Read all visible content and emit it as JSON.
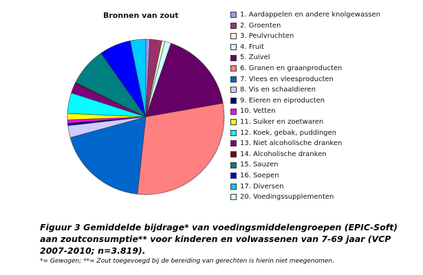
{
  "chart_data": {
    "type": "pie",
    "title": "Bronnen van zout",
    "legend_position": "right",
    "slices": [
      {
        "label": "1. Aardappelen en andere knolgewassen",
        "value": 0.8,
        "color": "#9999ff"
      },
      {
        "label": "2. Groenten",
        "value": 2.5,
        "color": "#993366"
      },
      {
        "label": "3. Peulvruchten",
        "value": 0.6,
        "color": "#ffffcc"
      },
      {
        "label": "4. Fruit",
        "value": 1.3,
        "color": "#ccffff"
      },
      {
        "label": "5. Zuivel",
        "value": 17.0,
        "color": "#660066"
      },
      {
        "label": "6. Granen en graanproducten",
        "value": 29.5,
        "color": "#ff8080"
      },
      {
        "label": "7. Vlees en vleesproducten",
        "value": 19.0,
        "color": "#0066cc"
      },
      {
        "label": "8. Vis en schaaldieren",
        "value": 2.5,
        "color": "#ccccff"
      },
      {
        "label": "9. Eieren en eiproducten",
        "value": 0.5,
        "color": "#000080"
      },
      {
        "label": "10. Vetten",
        "value": 0.7,
        "color": "#ff00ff"
      },
      {
        "label": "11. Suiker en zoetwaren",
        "value": 1.3,
        "color": "#ffff00"
      },
      {
        "label": "12. Koek, gebak, puddingen",
        "value": 4.3,
        "color": "#00ffff"
      },
      {
        "label": "13. Niet alcoholische dranken",
        "value": 2.0,
        "color": "#800080"
      },
      {
        "label": "14. Alcoholische dranken",
        "value": 0.3,
        "color": "#800000"
      },
      {
        "label": "15. Sauzen",
        "value": 8.0,
        "color": "#008080"
      },
      {
        "label": "16. Soepen",
        "value": 6.5,
        "color": "#0000ff"
      },
      {
        "label": "17. Diversen",
        "value": 3.2,
        "color": "#00ccff"
      },
      {
        "label": "20. Voedingssupplementen",
        "value": 0.0,
        "color": "#ccffff"
      }
    ]
  },
  "caption": {
    "text": "Figuur 3 Gemiddelde bijdrage* van voedingsmiddelengroepen (EPIC-Soft) aan zoutconsumptie** voor kinderen en volwassenen van 7-69 jaar (VCP 2007-2010; n=3.819).",
    "footnote": "*= Gewogen; **= Zout toegevoegd bij de bereiding van gerechten is hierin niet meegenomen."
  }
}
